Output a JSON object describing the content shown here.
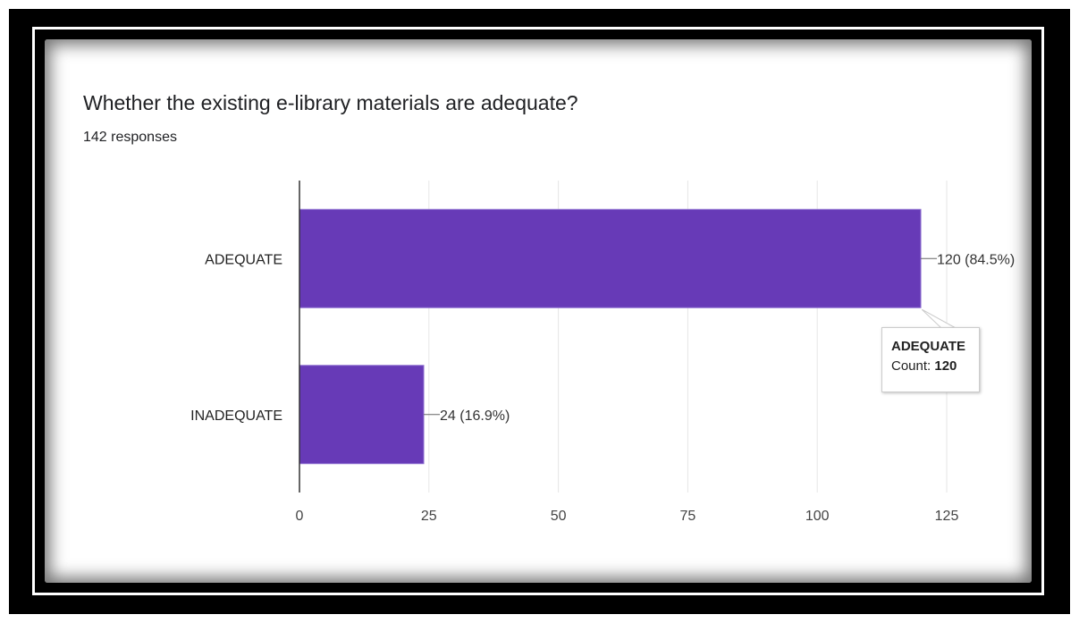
{
  "chart_data": {
    "type": "bar",
    "orientation": "horizontal",
    "title": "Whether the existing e-library materials are adequate?",
    "subtitle": "142 responses",
    "categories": [
      "ADEQUATE",
      "INADEQUATE"
    ],
    "values": [
      120,
      24
    ],
    "data_labels": [
      "120 (84.5%)",
      "24 (16.9%)"
    ],
    "xlim": [
      0,
      125
    ],
    "xticks": [
      0,
      25,
      50,
      75,
      100,
      125
    ],
    "grid": true,
    "bar_color": "#673ab7",
    "tooltip": {
      "title": "ADEQUATE",
      "label": "Count:",
      "value": "120"
    }
  }
}
